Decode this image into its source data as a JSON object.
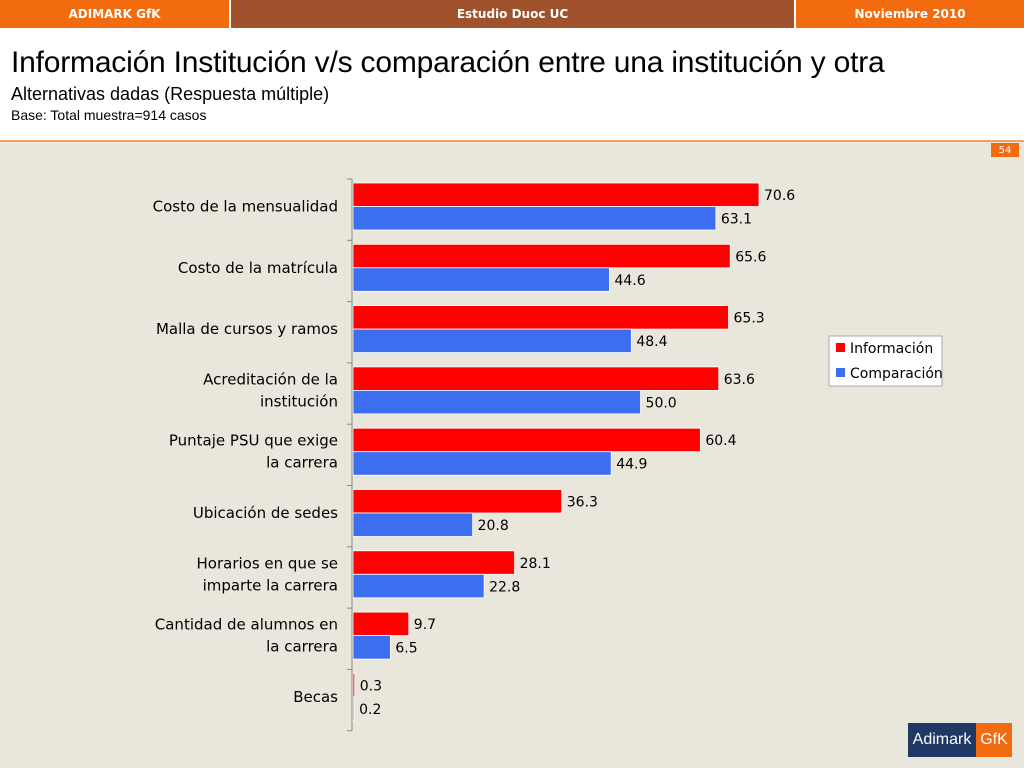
{
  "topbar": {
    "left": "ADIMARK GfK",
    "center": "Estudio Duoc UC",
    "right": "Noviembre 2010"
  },
  "header": {
    "title": "Información Institución v/s comparación entre una institución y otra",
    "subtitle": "Alternativas dadas (Respuesta múltiple)",
    "base": "Base: Total muestra=914 casos"
  },
  "page_number": "54",
  "logo": {
    "brand": "Adimark",
    "suffix": "GfK"
  },
  "colors": {
    "informacion": "#ff0000",
    "comparacion": "#3d6ef0"
  },
  "chart_data": {
    "type": "bar",
    "orientation": "horizontal",
    "categories": [
      [
        "Costo de la mensualidad"
      ],
      [
        "Costo de la matrícula"
      ],
      [
        "Malla de cursos y ramos"
      ],
      [
        "Acreditación de la",
        "institución"
      ],
      [
        "Puntaje PSU que exige",
        "la carrera"
      ],
      [
        "Ubicación de sedes"
      ],
      [
        "Horarios en que se",
        "imparte la carrera"
      ],
      [
        "Cantidad de alumnos en",
        "la carrera"
      ],
      [
        "Becas"
      ]
    ],
    "series": [
      {
        "name": "Información",
        "values": [
          70.6,
          65.6,
          65.3,
          63.6,
          60.4,
          36.3,
          28.1,
          9.7,
          0.3
        ],
        "labels": [
          "70.6",
          "65.6",
          "65.3",
          "63.6",
          "60.4",
          "36.3",
          "28.1",
          "9.7",
          "0.3"
        ]
      },
      {
        "name": "Comparación",
        "values": [
          63.1,
          44.6,
          48.4,
          50.0,
          44.9,
          20.8,
          22.8,
          6.5,
          0.2
        ],
        "labels": [
          "63.1",
          "44.6",
          "48.4",
          "50.0",
          "44.9",
          "20.8",
          "22.8",
          "6.5",
          "0.2"
        ]
      }
    ],
    "xlim": [
      0,
      100
    ],
    "legend": "right",
    "title": "",
    "xlabel": "",
    "ylabel": ""
  }
}
